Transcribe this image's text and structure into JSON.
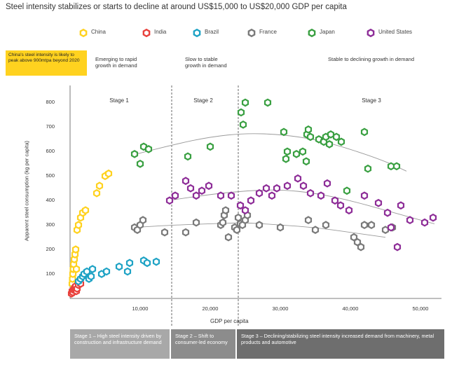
{
  "title": "Steel intensity stabilizes or starts to decline at around US$15,000 to US$20,000 GDP per capita",
  "callout": "China's steel intensity is likely to peak above 900mtpa beyond 2020",
  "phases": [
    {
      "label": "Emerging to rapid growth in demand"
    },
    {
      "label": "Slow to stable growth in demand"
    },
    {
      "label": "Stable to declining growth in demand"
    }
  ],
  "footer": [
    {
      "label": "Stage 1 – High steel intensity driven by construction and infrastructure demand"
    },
    {
      "label": "Stage 2 – Shift to consumer-led economy"
    },
    {
      "label": "Stage 3 – Declining/stabilizing steel intensity increased demand from machinery, metal products and automotive"
    }
  ],
  "colors": {
    "China": "#ffd21f",
    "India": "#e8413c",
    "Brazil": "#1fa3c5",
    "France": "#7a7a7a",
    "Japan": "#3aa042",
    "United States": "#8e2e98"
  },
  "chart_data": {
    "type": "scatter",
    "title": "Steel intensity stabilizes or starts to decline at around US$15,000 to US$20,000 GDP per capita",
    "xlabel": "GDP per capita",
    "ylabel": "Apparent steel consumption (kg per capita)",
    "xlim": [
      0,
      53000
    ],
    "ylim": [
      0,
      870
    ],
    "xticks": [
      {
        "value": 10000,
        "label": "10,000"
      },
      {
        "value": 20000,
        "label": "20,000"
      },
      {
        "value": 30000,
        "label": "30,000"
      },
      {
        "value": 40000,
        "label": "40,000"
      },
      {
        "value": 50000,
        "label": "50,000"
      }
    ],
    "yticks": [
      {
        "value": 100,
        "label": "100"
      },
      {
        "value": 200,
        "label": "200"
      },
      {
        "value": 300,
        "label": "300"
      },
      {
        "value": 400,
        "label": "400"
      },
      {
        "value": 500,
        "label": "500"
      },
      {
        "value": 600,
        "label": "600"
      },
      {
        "value": 700,
        "label": "700"
      },
      {
        "value": 800,
        "label": "800"
      }
    ],
    "stage_boundaries": [
      14500,
      24000
    ],
    "stages": [
      {
        "name": "Stage 1",
        "x": 7000
      },
      {
        "name": "Stage 2",
        "x": 19000
      },
      {
        "name": "Stage 3",
        "x": 43000
      }
    ],
    "series": [
      {
        "name": "China",
        "points": [
          [
            300,
            60
          ],
          [
            350,
            80
          ],
          [
            400,
            100
          ],
          [
            450,
            120
          ],
          [
            500,
            140
          ],
          [
            600,
            160
          ],
          [
            700,
            180
          ],
          [
            800,
            200
          ],
          [
            900,
            120
          ],
          [
            1000,
            280
          ],
          [
            1200,
            300
          ],
          [
            1500,
            330
          ],
          [
            1800,
            350
          ],
          [
            2200,
            360
          ],
          [
            3800,
            430
          ],
          [
            4200,
            460
          ],
          [
            5000,
            500
          ],
          [
            5500,
            510
          ]
        ]
      },
      {
        "name": "India",
        "points": [
          [
            200,
            20
          ],
          [
            300,
            30
          ],
          [
            400,
            25
          ],
          [
            500,
            35
          ],
          [
            600,
            40
          ],
          [
            700,
            45
          ],
          [
            800,
            50
          ],
          [
            900,
            30
          ],
          [
            1000,
            40
          ],
          [
            1200,
            55
          ],
          [
            1500,
            60
          ]
        ]
      },
      {
        "name": "Brazil",
        "points": [
          [
            1200,
            70
          ],
          [
            1500,
            80
          ],
          [
            1800,
            90
          ],
          [
            2000,
            100
          ],
          [
            2400,
            110
          ],
          [
            2700,
            80
          ],
          [
            3000,
            90
          ],
          [
            3200,
            120
          ],
          [
            4500,
            100
          ],
          [
            5200,
            110
          ],
          [
            7000,
            130
          ],
          [
            8200,
            110
          ],
          [
            8500,
            145
          ],
          [
            10500,
            155
          ],
          [
            11000,
            145
          ],
          [
            12300,
            150
          ]
        ]
      },
      {
        "name": "France",
        "points": [
          [
            9200,
            290
          ],
          [
            9600,
            280
          ],
          [
            10000,
            300
          ],
          [
            10400,
            320
          ],
          [
            13500,
            270
          ],
          [
            16500,
            270
          ],
          [
            18000,
            310
          ],
          [
            21500,
            300
          ],
          [
            21800,
            310
          ],
          [
            22000,
            340
          ],
          [
            22200,
            360
          ],
          [
            22600,
            250
          ],
          [
            23500,
            290
          ],
          [
            23800,
            280
          ],
          [
            24000,
            330
          ],
          [
            24300,
            305
          ],
          [
            24600,
            300
          ],
          [
            25000,
            320
          ],
          [
            25300,
            340
          ],
          [
            27000,
            300
          ],
          [
            30000,
            290
          ],
          [
            34000,
            320
          ],
          [
            35000,
            280
          ],
          [
            36500,
            300
          ],
          [
            40500,
            250
          ],
          [
            41000,
            230
          ],
          [
            41500,
            210
          ],
          [
            42000,
            300
          ],
          [
            43000,
            300
          ],
          [
            45000,
            280
          ],
          [
            46000,
            290
          ]
        ]
      },
      {
        "name": "Japan",
        "points": [
          [
            9200,
            590
          ],
          [
            10000,
            550
          ],
          [
            10500,
            620
          ],
          [
            11200,
            610
          ],
          [
            16800,
            580
          ],
          [
            20000,
            620
          ],
          [
            24400,
            760
          ],
          [
            24700,
            710
          ],
          [
            25000,
            800
          ],
          [
            28200,
            800
          ],
          [
            30500,
            680
          ],
          [
            30800,
            570
          ],
          [
            31000,
            600
          ],
          [
            32300,
            590
          ],
          [
            33200,
            600
          ],
          [
            33700,
            560
          ],
          [
            33800,
            670
          ],
          [
            34000,
            690
          ],
          [
            34300,
            660
          ],
          [
            35500,
            650
          ],
          [
            36200,
            640
          ],
          [
            36500,
            660
          ],
          [
            37000,
            630
          ],
          [
            37200,
            670
          ],
          [
            38000,
            660
          ],
          [
            38700,
            640
          ],
          [
            39500,
            440
          ],
          [
            42000,
            680
          ],
          [
            42500,
            530
          ],
          [
            45800,
            540
          ],
          [
            46600,
            540
          ]
        ]
      },
      {
        "name": "United States",
        "points": [
          [
            14200,
            400
          ],
          [
            15000,
            420
          ],
          [
            16500,
            480
          ],
          [
            17200,
            450
          ],
          [
            18000,
            420
          ],
          [
            18800,
            440
          ],
          [
            19800,
            460
          ],
          [
            21500,
            420
          ],
          [
            23000,
            420
          ],
          [
            24300,
            380
          ],
          [
            25000,
            360
          ],
          [
            25800,
            400
          ],
          [
            27000,
            430
          ],
          [
            28000,
            450
          ],
          [
            28800,
            420
          ],
          [
            29500,
            450
          ],
          [
            31000,
            460
          ],
          [
            32500,
            490
          ],
          [
            33300,
            460
          ],
          [
            34300,
            430
          ],
          [
            35800,
            420
          ],
          [
            36700,
            470
          ],
          [
            37800,
            400
          ],
          [
            38600,
            380
          ],
          [
            39800,
            360
          ],
          [
            42000,
            420
          ],
          [
            44000,
            390
          ],
          [
            45300,
            350
          ],
          [
            45800,
            290
          ],
          [
            46700,
            210
          ],
          [
            47200,
            380
          ],
          [
            48500,
            320
          ],
          [
            50600,
            310
          ],
          [
            51800,
            330
          ]
        ]
      }
    ],
    "trend_lines": [
      {
        "name": "Japan trend",
        "points": [
          [
            9500,
            590
          ],
          [
            15000,
            630
          ],
          [
            20000,
            660
          ],
          [
            25000,
            675
          ],
          [
            30000,
            670
          ],
          [
            35000,
            650
          ],
          [
            40000,
            610
          ],
          [
            45000,
            560
          ],
          [
            48000,
            520
          ]
        ]
      },
      {
        "name": "United States trend",
        "points": [
          [
            14000,
            400
          ],
          [
            20000,
            425
          ],
          [
            25000,
            440
          ],
          [
            30000,
            445
          ],
          [
            35000,
            430
          ],
          [
            40000,
            400
          ],
          [
            45000,
            360
          ],
          [
            50000,
            320
          ],
          [
            52000,
            305
          ]
        ]
      },
      {
        "name": "France trend",
        "points": [
          [
            9000,
            290
          ],
          [
            15000,
            300
          ],
          [
            20000,
            305
          ],
          [
            25000,
            310
          ],
          [
            30000,
            300
          ],
          [
            35000,
            290
          ],
          [
            40000,
            270
          ],
          [
            45000,
            250
          ]
        ]
      }
    ]
  }
}
